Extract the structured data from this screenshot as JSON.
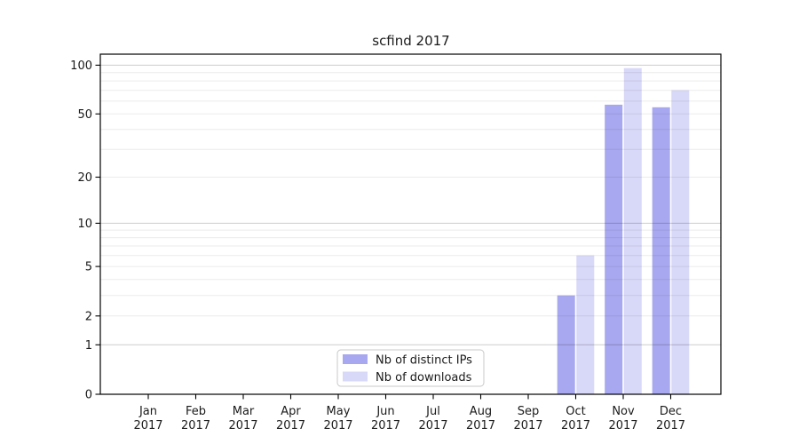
{
  "page": {
    "background": "#ffffff"
  },
  "chart_data": {
    "type": "bar",
    "title": "scfind 2017",
    "x": {
      "months": [
        "Jan",
        "Feb",
        "Mar",
        "Apr",
        "May",
        "Jun",
        "Jul",
        "Aug",
        "Sep",
        "Oct",
        "Nov",
        "Dec"
      ],
      "year": "2017"
    },
    "categories": [
      "Jan 2017",
      "Feb 2017",
      "Mar 2017",
      "Apr 2017",
      "May 2017",
      "Jun 2017",
      "Jul 2017",
      "Aug 2017",
      "Sep 2017",
      "Oct 2017",
      "Nov 2017",
      "Dec 2017"
    ],
    "series": [
      {
        "name": "Nb of distinct IPs",
        "color": "#a8a8f0",
        "values": [
          0,
          0,
          0,
          0,
          0,
          0,
          0,
          0,
          0,
          3,
          57,
          55
        ]
      },
      {
        "name": "Nb of downloads",
        "color": "#d8d8f8",
        "values": [
          0,
          0,
          0,
          0,
          0,
          0,
          0,
          0,
          0,
          6,
          96,
          70
        ]
      }
    ],
    "y_axis": {
      "scale": "symlog",
      "ylim": [
        0,
        116
      ],
      "tick_values": [
        0,
        1,
        2,
        5,
        10,
        20,
        50,
        100
      ],
      "tick_labels": [
        "0",
        "1",
        "2",
        "5",
        "10",
        "20",
        "50",
        "100"
      ],
      "major_gridline_values": [
        1,
        10,
        100
      ],
      "minor_gridline_values": [
        2,
        3,
        4,
        5,
        6,
        7,
        8,
        9,
        20,
        30,
        40,
        50,
        60,
        70,
        80,
        90
      ]
    },
    "grid": true,
    "legend": {
      "position": "lower center",
      "entries": [
        "Nb of distinct IPs",
        "Nb of downloads"
      ]
    }
  },
  "colors": {
    "bar_distinct_ips": "#a8a8f0",
    "bar_downloads": "#d8d8f8",
    "grid_minor": "rgba(0,0,0,0.08)",
    "grid_major": "rgba(0,0,0,0.20)",
    "axis_line": "#000000",
    "text": "#1a1a1a",
    "legend_border": "#c8c8c8",
    "legend_background": "#ffffff"
  }
}
